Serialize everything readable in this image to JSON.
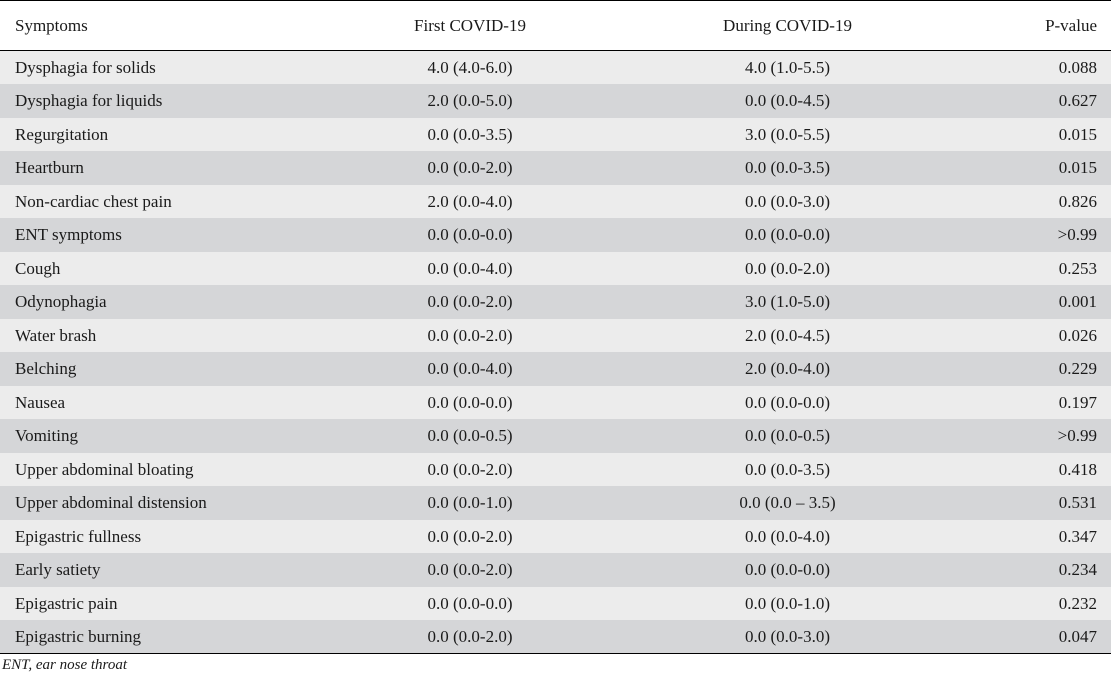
{
  "table": {
    "headers": [
      "Symptoms",
      "First COVID-19",
      "During COVID-19",
      "P-value"
    ],
    "rows": [
      [
        "Dysphagia for solids",
        "4.0 (4.0-6.0)",
        "4.0 (1.0-5.5)",
        "0.088"
      ],
      [
        "Dysphagia for liquids",
        "2.0 (0.0-5.0)",
        "0.0 (0.0-4.5)",
        "0.627"
      ],
      [
        "Regurgitation",
        "0.0 (0.0-3.5)",
        "3.0 (0.0-5.5)",
        "0.015"
      ],
      [
        "Heartburn",
        "0.0 (0.0-2.0)",
        "0.0 (0.0-3.5)",
        "0.015"
      ],
      [
        "Non-cardiac chest pain",
        "2.0 (0.0-4.0)",
        "0.0 (0.0-3.0)",
        "0.826"
      ],
      [
        "ENT symptoms",
        "0.0 (0.0-0.0)",
        "0.0 (0.0-0.0)",
        ">0.99"
      ],
      [
        "Cough",
        "0.0 (0.0-4.0)",
        "0.0 (0.0-2.0)",
        "0.253"
      ],
      [
        "Odynophagia",
        "0.0 (0.0-2.0)",
        "3.0 (1.0-5.0)",
        "0.001"
      ],
      [
        "Water brash",
        "0.0 (0.0-2.0)",
        "2.0 (0.0-4.5)",
        "0.026"
      ],
      [
        "Belching",
        "0.0 (0.0-4.0)",
        "2.0 (0.0-4.0)",
        "0.229"
      ],
      [
        "Nausea",
        "0.0 (0.0-0.0)",
        "0.0 (0.0-0.0)",
        "0.197"
      ],
      [
        "Vomiting",
        "0.0 (0.0-0.5)",
        "0.0 (0.0-0.5)",
        ">0.99"
      ],
      [
        "Upper abdominal bloating",
        "0.0 (0.0-2.0)",
        "0.0 (0.0-3.5)",
        "0.418"
      ],
      [
        "Upper abdominal distension",
        "0.0 (0.0-1.0)",
        "0.0 (0.0 – 3.5)",
        "0.531"
      ],
      [
        "Epigastric fullness",
        "0.0 (0.0-2.0)",
        "0.0 (0.0-4.0)",
        "0.347"
      ],
      [
        "Early satiety",
        "0.0 (0.0-2.0)",
        "0.0 (0.0-0.0)",
        "0.234"
      ],
      [
        "Epigastric pain",
        "0.0 (0.0-0.0)",
        "0.0 (0.0-1.0)",
        "0.232"
      ],
      [
        "Epigastric burning",
        "0.0 (0.0-2.0)",
        "0.0 (0.0-3.0)",
        "0.047"
      ]
    ]
  },
  "footnote": "ENT, ear nose throat"
}
